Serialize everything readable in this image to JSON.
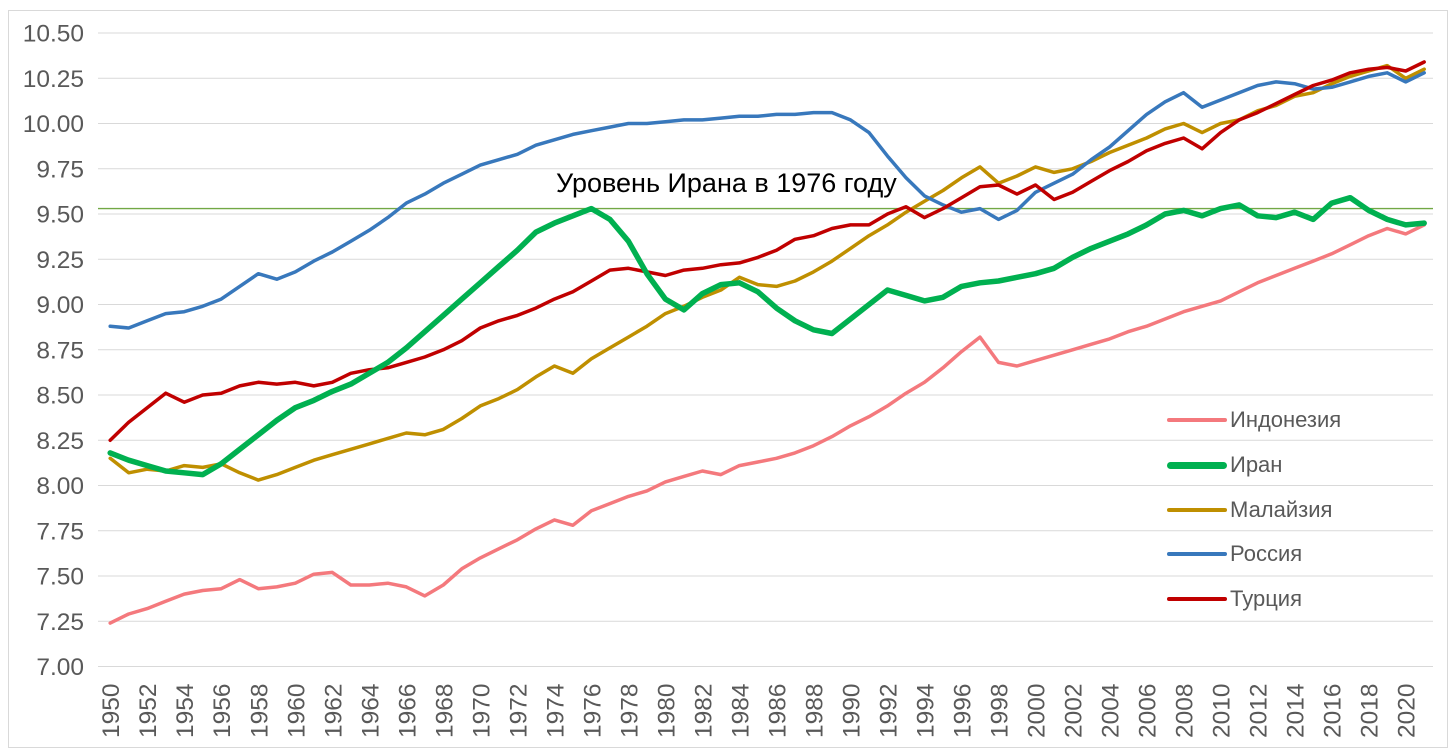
{
  "chart_data": {
    "type": "line",
    "grid": true,
    "background": "#ffffff",
    "annotation": {
      "text": "Уровень Ирана в 1976 году"
    },
    "reference_line": {
      "value": 9.53,
      "color": "#72A845",
      "meaning": "Уровень Ирана в 1976 году"
    },
    "x_range": [
      1950,
      2021
    ],
    "ylim": [
      7.0,
      10.5
    ],
    "y_tick_step": 0.25,
    "y_axis": {
      "tick_labels": [
        "10.50",
        "10.25",
        "10.00",
        "9.75",
        "9.50",
        "9.25",
        "9.00",
        "8.75",
        "8.50",
        "8.25",
        "8.00",
        "7.75",
        "7.50",
        "7.25",
        "7.00"
      ]
    },
    "x_axis": {
      "tick_labels": [
        "1950",
        "1952",
        "1954",
        "1956",
        "1958",
        "1960",
        "1962",
        "1964",
        "1966",
        "1968",
        "1970",
        "1972",
        "1974",
        "1976",
        "1978",
        "1980",
        "1982",
        "1984",
        "1986",
        "1988",
        "1990",
        "1992",
        "1994",
        "1996",
        "1998",
        "2000",
        "2002",
        "2004",
        "2006",
        "2008",
        "2010",
        "2012",
        "2014",
        "2016",
        "2018",
        "2020"
      ]
    },
    "legend_position": "right-inside",
    "series": [
      {
        "name": "Индонезия",
        "color": "#F4797D",
        "width": 3.5,
        "values": [
          7.24,
          7.29,
          7.32,
          7.36,
          7.4,
          7.42,
          7.43,
          7.48,
          7.43,
          7.44,
          7.46,
          7.51,
          7.52,
          7.45,
          7.45,
          7.46,
          7.44,
          7.39,
          7.45,
          7.54,
          7.6,
          7.65,
          7.7,
          7.76,
          7.81,
          7.78,
          7.86,
          7.9,
          7.94,
          7.97,
          8.02,
          8.05,
          8.08,
          8.06,
          8.11,
          8.13,
          8.15,
          8.18,
          8.22,
          8.27,
          8.33,
          8.38,
          8.44,
          8.51,
          8.57,
          8.65,
          8.74,
          8.82,
          8.68,
          8.66,
          8.69,
          8.72,
          8.75,
          8.78,
          8.81,
          8.85,
          8.88,
          8.92,
          8.96,
          8.99,
          9.02,
          9.07,
          9.12,
          9.16,
          9.2,
          9.24,
          9.28,
          9.33,
          9.38,
          9.42,
          9.39,
          9.44
        ]
      },
      {
        "name": "Иран",
        "color": "#00B050",
        "width": 5.5,
        "values": [
          8.18,
          8.14,
          8.11,
          8.08,
          8.07,
          8.06,
          8.12,
          8.2,
          8.28,
          8.36,
          8.43,
          8.47,
          8.52,
          8.56,
          8.62,
          8.68,
          8.76,
          8.85,
          8.94,
          9.03,
          9.12,
          9.21,
          9.3,
          9.4,
          9.45,
          9.49,
          9.53,
          9.47,
          9.35,
          9.17,
          9.03,
          8.97,
          9.06,
          9.11,
          9.12,
          9.07,
          8.98,
          8.91,
          8.86,
          8.84,
          8.92,
          9.0,
          9.08,
          9.05,
          9.02,
          9.04,
          9.1,
          9.12,
          9.13,
          9.15,
          9.17,
          9.2,
          9.26,
          9.31,
          9.35,
          9.39,
          9.44,
          9.5,
          9.52,
          9.49,
          9.53,
          9.55,
          9.49,
          9.48,
          9.51,
          9.47,
          9.56,
          9.59,
          9.52,
          9.47,
          9.44,
          9.45
        ]
      },
      {
        "name": "Малайзия",
        "color": "#BF8F00",
        "width": 3.5,
        "values": [
          8.15,
          8.07,
          8.09,
          8.08,
          8.11,
          8.1,
          8.12,
          8.07,
          8.03,
          8.06,
          8.1,
          8.14,
          8.17,
          8.2,
          8.23,
          8.26,
          8.29,
          8.28,
          8.31,
          8.37,
          8.44,
          8.48,
          8.53,
          8.6,
          8.66,
          8.62,
          8.7,
          8.76,
          8.82,
          8.88,
          8.95,
          8.99,
          9.04,
          9.08,
          9.15,
          9.11,
          9.1,
          9.13,
          9.18,
          9.24,
          9.31,
          9.38,
          9.44,
          9.51,
          9.57,
          9.63,
          9.7,
          9.76,
          9.67,
          9.71,
          9.76,
          9.73,
          9.75,
          9.79,
          9.84,
          9.88,
          9.92,
          9.97,
          10.0,
          9.95,
          10.0,
          10.02,
          10.07,
          10.1,
          10.15,
          10.17,
          10.22,
          10.26,
          10.29,
          10.32,
          10.25,
          10.3
        ]
      },
      {
        "name": "Россия",
        "color": "#3878BC",
        "width": 3.5,
        "values": [
          8.88,
          8.87,
          8.91,
          8.95,
          8.96,
          8.99,
          9.03,
          9.1,
          9.17,
          9.14,
          9.18,
          9.24,
          9.29,
          9.35,
          9.41,
          9.48,
          9.56,
          9.61,
          9.67,
          9.72,
          9.77,
          9.8,
          9.83,
          9.88,
          9.91,
          9.94,
          9.96,
          9.98,
          10.0,
          10.0,
          10.01,
          10.02,
          10.02,
          10.03,
          10.04,
          10.04,
          10.05,
          10.05,
          10.06,
          10.06,
          10.02,
          9.95,
          9.82,
          9.7,
          9.6,
          9.55,
          9.51,
          9.53,
          9.47,
          9.52,
          9.62,
          9.67,
          9.72,
          9.8,
          9.87,
          9.96,
          10.05,
          10.12,
          10.17,
          10.09,
          10.13,
          10.17,
          10.21,
          10.23,
          10.22,
          10.19,
          10.2,
          10.23,
          10.26,
          10.28,
          10.23,
          10.28
        ]
      },
      {
        "name": "Турция",
        "color": "#C00000",
        "width": 3.5,
        "values": [
          8.25,
          8.35,
          8.43,
          8.51,
          8.46,
          8.5,
          8.51,
          8.55,
          8.57,
          8.56,
          8.57,
          8.55,
          8.57,
          8.62,
          8.64,
          8.65,
          8.68,
          8.71,
          8.75,
          8.8,
          8.87,
          8.91,
          8.94,
          8.98,
          9.03,
          9.07,
          9.13,
          9.19,
          9.2,
          9.18,
          9.16,
          9.19,
          9.2,
          9.22,
          9.23,
          9.26,
          9.3,
          9.36,
          9.38,
          9.42,
          9.44,
          9.44,
          9.5,
          9.54,
          9.48,
          9.53,
          9.59,
          9.65,
          9.66,
          9.61,
          9.66,
          9.58,
          9.62,
          9.68,
          9.74,
          9.79,
          9.85,
          9.89,
          9.92,
          9.86,
          9.95,
          10.02,
          10.06,
          10.11,
          10.16,
          10.21,
          10.24,
          10.28,
          10.3,
          10.31,
          10.29,
          10.34
        ]
      }
    ],
    "draw_order": [
      0,
      2,
      3,
      4,
      1
    ]
  },
  "colors": {
    "gridline": "#D9D9D9",
    "chart_border": "#D9D9D9",
    "axis_text": "#595959",
    "legend_text": "#595959",
    "annotation_text": "#000000"
  }
}
